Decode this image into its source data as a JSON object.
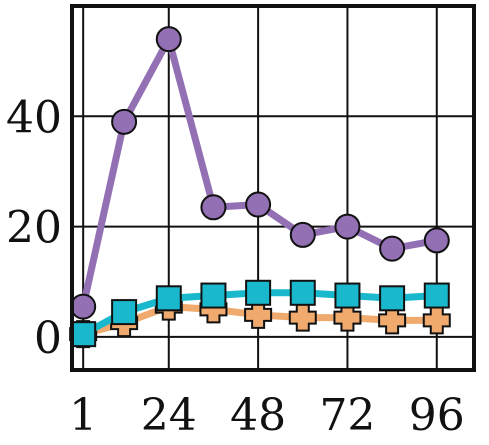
{
  "chart_data": {
    "type": "line",
    "title": "",
    "xlabel": "",
    "ylabel": "",
    "x": [
      1,
      12,
      24,
      36,
      48,
      60,
      72,
      84,
      96
    ],
    "x_ticks": [
      1,
      24,
      48,
      72,
      96
    ],
    "x_tick_labels": [
      "1",
      "24",
      "48",
      "72",
      "96"
    ],
    "y_ticks": [
      0,
      20,
      40
    ],
    "y_tick_labels": [
      "0",
      "20",
      "40"
    ],
    "xlim": [
      -2,
      106
    ],
    "ylim": [
      -6,
      60
    ],
    "grid": true,
    "series": [
      {
        "marker": "circle",
        "color": "#9370b4",
        "values": [
          5.5,
          39,
          54,
          23.5,
          24,
          18.5,
          20,
          16,
          17.5
        ]
      },
      {
        "marker": "plus",
        "color": "#f0aa6e",
        "values": [
          0.5,
          2.5,
          5.5,
          5,
          4,
          3.5,
          3.5,
          3,
          3
        ]
      },
      {
        "marker": "square",
        "color": "#1ab8cc",
        "values": [
          0.5,
          4.5,
          7,
          7.5,
          8,
          8,
          7.5,
          7,
          7.5
        ]
      }
    ]
  }
}
